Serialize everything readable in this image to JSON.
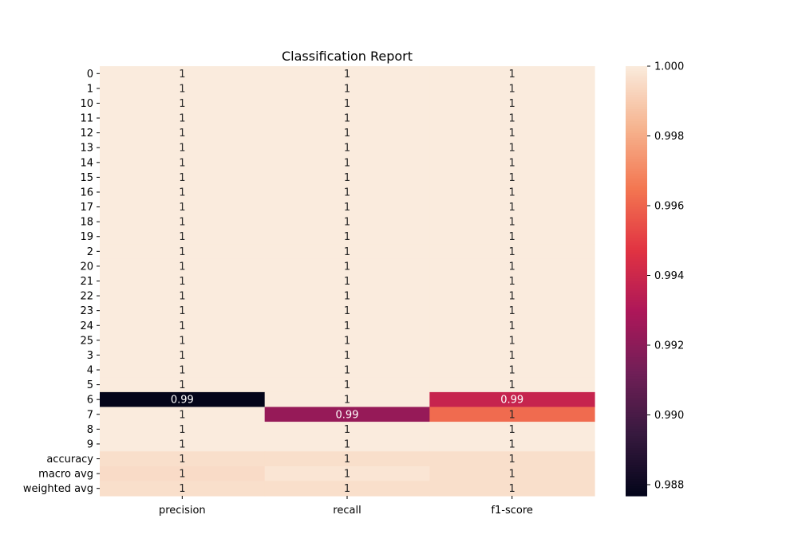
{
  "chart_data": {
    "type": "heatmap",
    "title": "Classification Report",
    "xlabel": "",
    "ylabel": "",
    "columns": [
      "precision",
      "recall",
      "f1-score"
    ],
    "rows": [
      "0",
      "1",
      "10",
      "11",
      "12",
      "13",
      "14",
      "15",
      "16",
      "17",
      "18",
      "19",
      "2",
      "20",
      "21",
      "22",
      "23",
      "24",
      "25",
      "3",
      "4",
      "5",
      "6",
      "7",
      "8",
      "9",
      "accuracy",
      "macro avg",
      "weighted avg"
    ],
    "values": [
      [
        1,
        1,
        1
      ],
      [
        1,
        1,
        1
      ],
      [
        1,
        1,
        1
      ],
      [
        1,
        1,
        1
      ],
      [
        1,
        1,
        1
      ],
      [
        1,
        1,
        1
      ],
      [
        1,
        1,
        1
      ],
      [
        1,
        1,
        1
      ],
      [
        1,
        1,
        1
      ],
      [
        1,
        1,
        1
      ],
      [
        1,
        1,
        1
      ],
      [
        1,
        1,
        1
      ],
      [
        1,
        1,
        1
      ],
      [
        1,
        1,
        1
      ],
      [
        1,
        1,
        1
      ],
      [
        1,
        1,
        1
      ],
      [
        1,
        1,
        1
      ],
      [
        1,
        1,
        1
      ],
      [
        1,
        1,
        1
      ],
      [
        1,
        1,
        1
      ],
      [
        1,
        1,
        1
      ],
      [
        1,
        1,
        1
      ],
      [
        0.9877,
        1.0,
        0.9938
      ],
      [
        1.0,
        0.9923,
        0.9962
      ],
      [
        1,
        1,
        1
      ],
      [
        1,
        1,
        1
      ],
      [
        0.9996,
        0.9996,
        0.9996
      ],
      [
        0.9995,
        0.9998,
        0.9996
      ],
      [
        0.9996,
        0.9996,
        0.9996
      ]
    ],
    "annotations": [
      [
        "1",
        "1",
        "1"
      ],
      [
        "1",
        "1",
        "1"
      ],
      [
        "1",
        "1",
        "1"
      ],
      [
        "1",
        "1",
        "1"
      ],
      [
        "1",
        "1",
        "1"
      ],
      [
        "1",
        "1",
        "1"
      ],
      [
        "1",
        "1",
        "1"
      ],
      [
        "1",
        "1",
        "1"
      ],
      [
        "1",
        "1",
        "1"
      ],
      [
        "1",
        "1",
        "1"
      ],
      [
        "1",
        "1",
        "1"
      ],
      [
        "1",
        "1",
        "1"
      ],
      [
        "1",
        "1",
        "1"
      ],
      [
        "1",
        "1",
        "1"
      ],
      [
        "1",
        "1",
        "1"
      ],
      [
        "1",
        "1",
        "1"
      ],
      [
        "1",
        "1",
        "1"
      ],
      [
        "1",
        "1",
        "1"
      ],
      [
        "1",
        "1",
        "1"
      ],
      [
        "1",
        "1",
        "1"
      ],
      [
        "1",
        "1",
        "1"
      ],
      [
        "1",
        "1",
        "1"
      ],
      [
        "0.99",
        "1",
        "0.99"
      ],
      [
        "1",
        "0.99",
        "1"
      ],
      [
        "1",
        "1",
        "1"
      ],
      [
        "1",
        "1",
        "1"
      ],
      [
        "1",
        "1",
        "1"
      ],
      [
        "1",
        "1",
        "1"
      ],
      [
        "1",
        "1",
        "1"
      ]
    ],
    "colorbar": {
      "vmin": 0.98768,
      "vmax": 1.0,
      "ticks": [
        0.988,
        0.99,
        0.992,
        0.994,
        0.996,
        0.998,
        1.0
      ],
      "tick_labels": [
        "0.988",
        "0.990",
        "0.992",
        "0.994",
        "0.996",
        "0.998",
        "1.000"
      ],
      "colormap": "rocket"
    },
    "colormap_stops": [
      "#03051a",
      "#36193e",
      "#701f57",
      "#ad1759",
      "#e13342",
      "#f37651",
      "#f6b48f",
      "#faebdd"
    ]
  }
}
